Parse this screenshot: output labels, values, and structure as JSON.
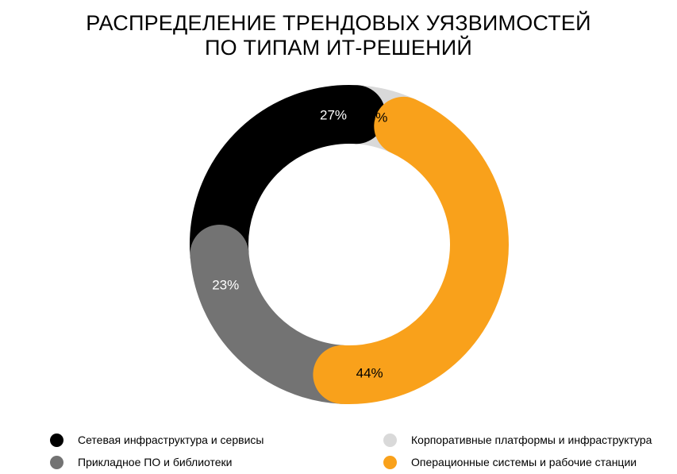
{
  "title": {
    "line1": "РАСПРЕДЕЛЕНИЕ ТРЕНДОВЫХ УЯЗВИМОСТЕЙ",
    "line2": "ПО ТИПАМ ИТ-РЕШЕНИЙ"
  },
  "chart_data": {
    "type": "pie",
    "donut": true,
    "title": "РАСПРЕДЕЛЕНИЕ ТРЕНДОВЫХ УЯЗВИМОСТЕЙ ПО ТИПАМ ИТ-РЕШЕНИЙ",
    "legend_position": "bottom",
    "slices": [
      {
        "name": "Корпоративные платформы и инфраструктура",
        "value": 6,
        "label": "6%",
        "color": "#d9d9d9",
        "label_color": "#000000"
      },
      {
        "name": "Операционные системы и рабочие станции",
        "value": 44,
        "label": "44%",
        "color": "#f9a11b",
        "label_color": "#000000"
      },
      {
        "name": "Прикладное ПО и библиотеки",
        "value": 23,
        "label": "23%",
        "color": "#737373",
        "label_color": "#ffffff"
      },
      {
        "name": "Сетевая инфраструктура и сервисы",
        "value": 27,
        "label": "27%",
        "color": "#000000",
        "label_color": "#ffffff"
      }
    ]
  },
  "legend": {
    "items": [
      {
        "label": "Сетевая инфраструктура и сервисы",
        "color": "#000000"
      },
      {
        "label": "Корпоративные платформы и инфраструктура",
        "color": "#d9d9d9"
      },
      {
        "label": "Прикладное ПО и библиотеки",
        "color": "#737373"
      },
      {
        "label": "Операционные системы и рабочие станции",
        "color": "#f9a11b"
      }
    ]
  }
}
